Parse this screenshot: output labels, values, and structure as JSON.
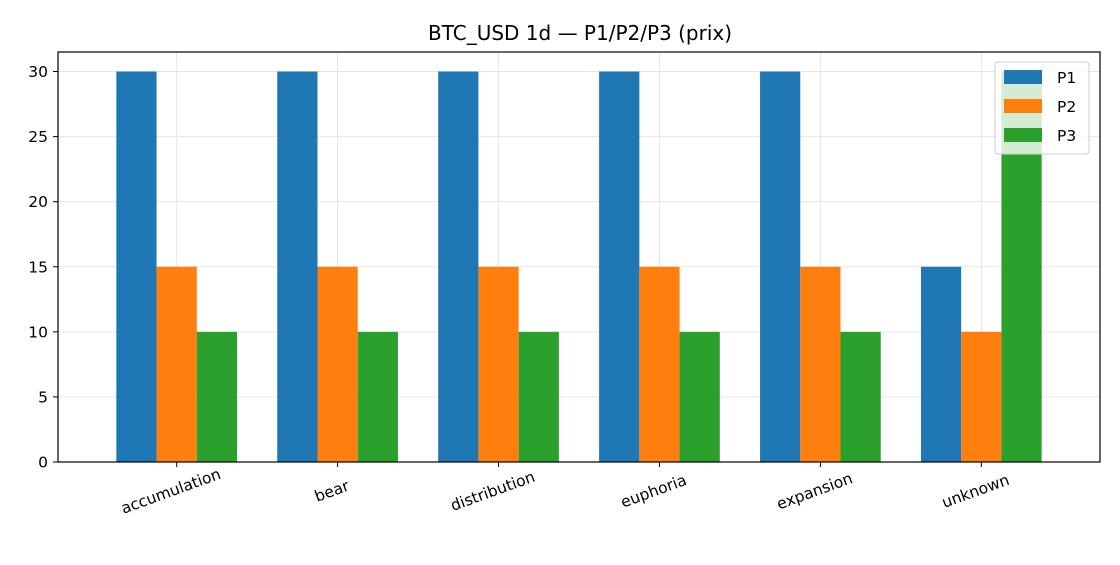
{
  "chart_data": {
    "type": "bar",
    "title": "BTC_USD 1d — P1/P2/P3 (prix)",
    "xlabel": "",
    "ylabel": "",
    "categories": [
      "accumulation",
      "bear",
      "distribution",
      "euphoria",
      "expansion",
      "unknown"
    ],
    "series": [
      {
        "name": "P1",
        "color": "#1f77b4",
        "values": [
          30,
          30,
          30,
          30,
          30,
          15
        ]
      },
      {
        "name": "P2",
        "color": "#ff7f0e",
        "values": [
          15,
          15,
          15,
          15,
          15,
          10
        ]
      },
      {
        "name": "P3",
        "color": "#2ca02c",
        "values": [
          10,
          10,
          10,
          10,
          10,
          30
        ]
      }
    ],
    "ylim": [
      0,
      31.5
    ],
    "yticks": [
      0,
      5,
      10,
      15,
      20,
      25,
      30
    ],
    "grid": true,
    "legend_position": "top-right"
  }
}
